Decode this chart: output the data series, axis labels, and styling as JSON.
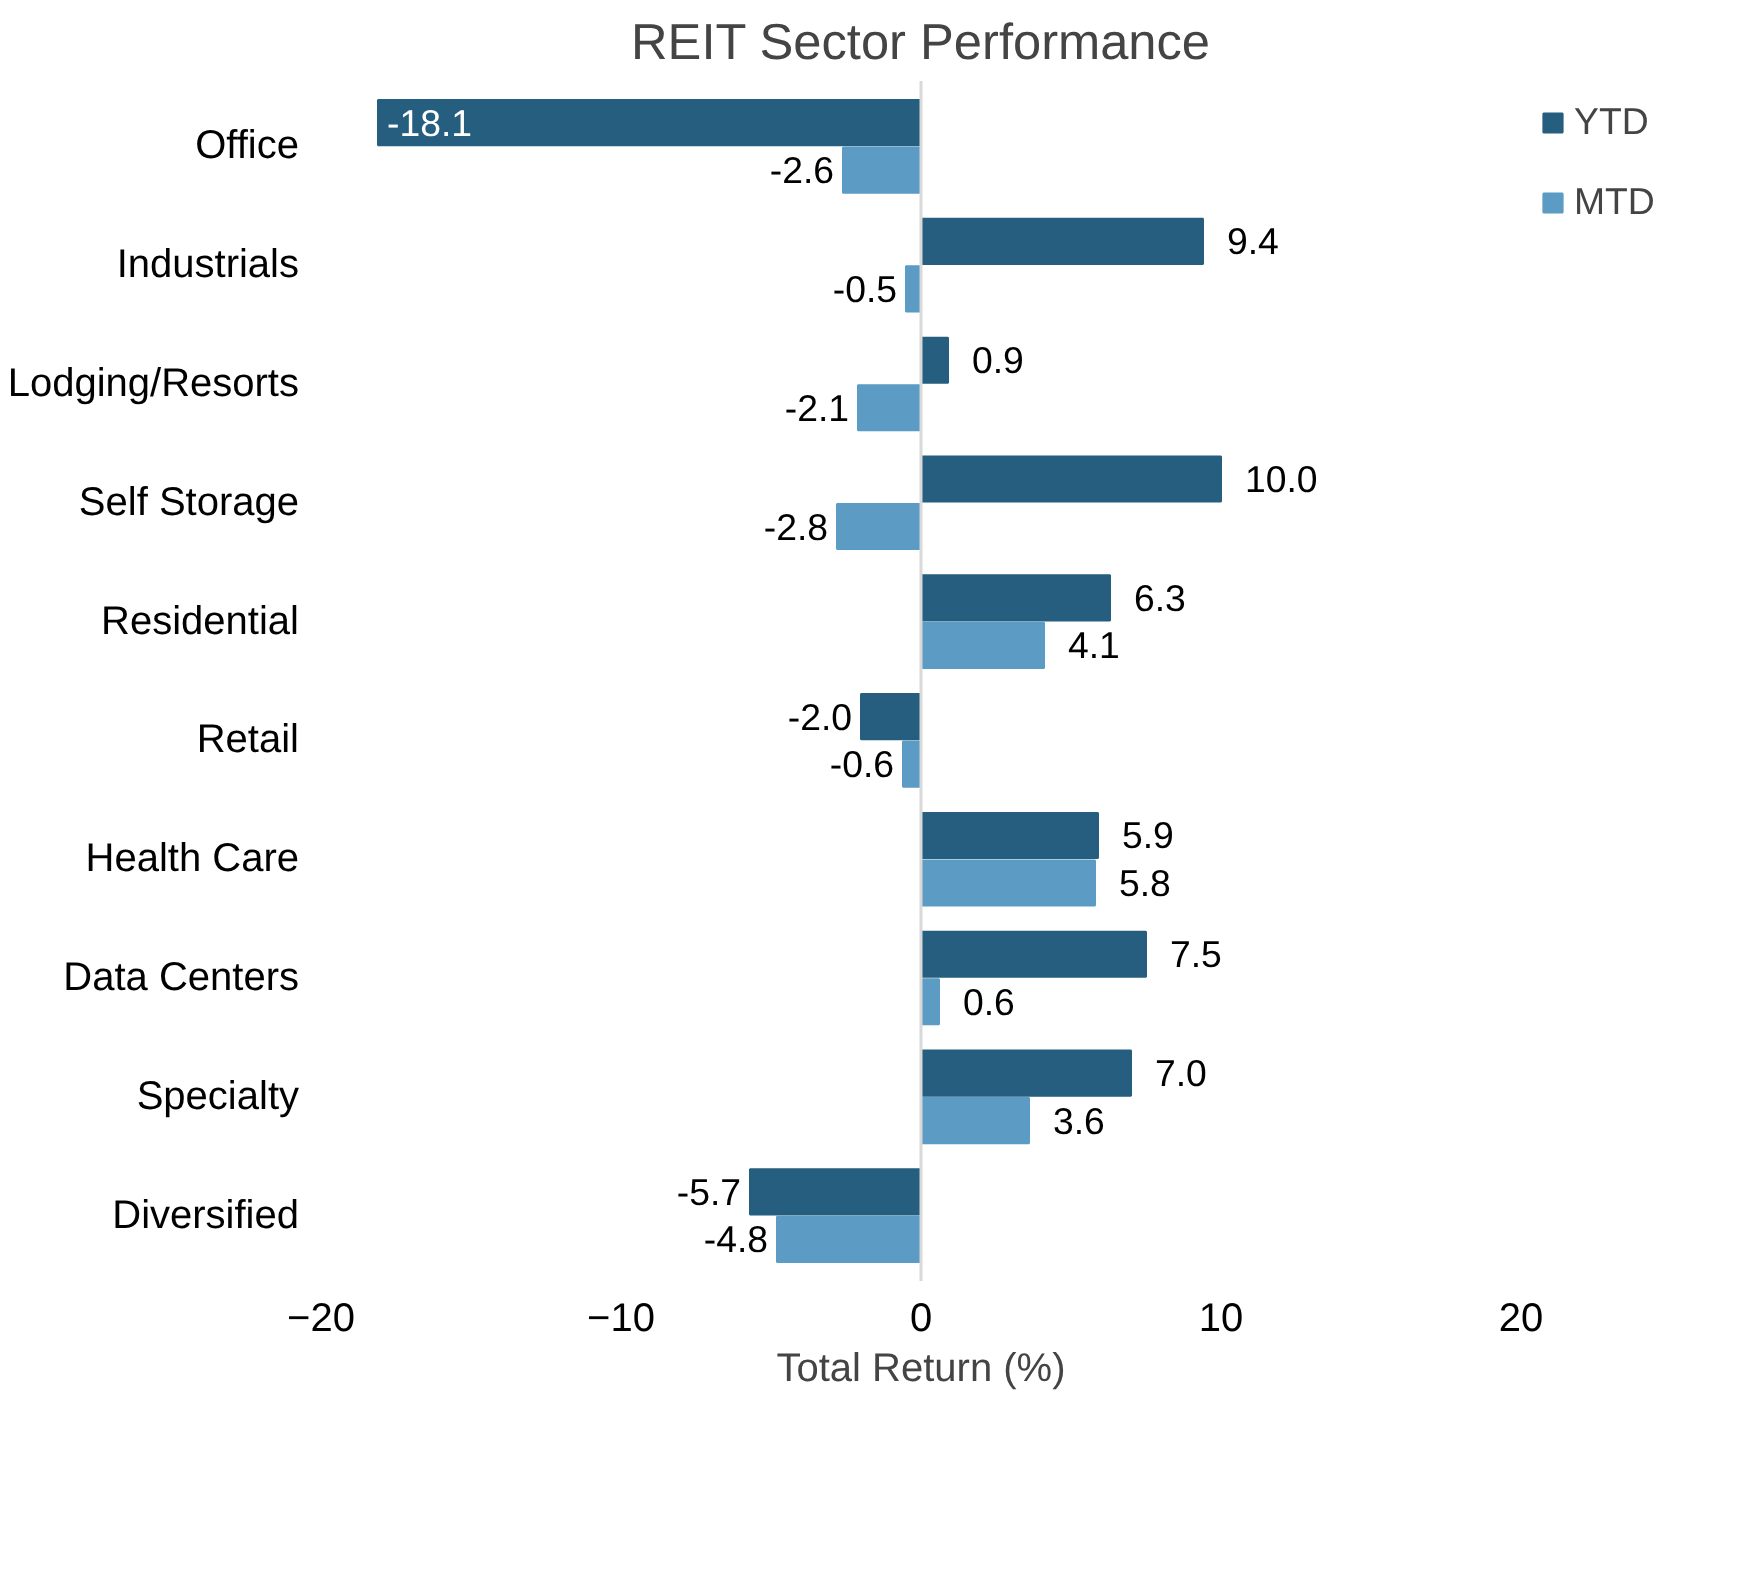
{
  "chart_data": {
    "type": "bar",
    "orientation": "horizontal",
    "title": "REIT Sector Performance",
    "xlabel": "Total Return (%)",
    "categories": [
      "Office",
      "Industrials",
      "Lodging/Resorts",
      "Self Storage",
      "Residential",
      "Retail",
      "Health Care",
      "Data Centers",
      "Specialty",
      "Diversified"
    ],
    "series": [
      {
        "name": "YTD",
        "color": "#255e7e",
        "values": [
          -18.1,
          9.4,
          0.9,
          10.0,
          6.3,
          -2.0,
          5.9,
          7.5,
          7.0,
          -5.7
        ],
        "value_labels": [
          "-18.1",
          "9.4",
          "0.9",
          "10.0",
          "6.3",
          "-2.0",
          "5.9",
          "7.5",
          "7.0",
          "-5.7"
        ]
      },
      {
        "name": "MTD",
        "color": "#5b9bc4",
        "values": [
          -2.6,
          -0.5,
          -2.1,
          -2.8,
          4.1,
          -0.6,
          5.8,
          0.6,
          3.6,
          -4.8
        ],
        "value_labels": [
          "-2.6",
          "-0.5",
          "-2.1",
          "-2.8",
          "4.1",
          "-0.6",
          "5.8",
          "0.6",
          "3.6",
          "-4.8"
        ]
      }
    ],
    "xlim": [
      -20,
      20
    ],
    "xticks": [
      -20,
      -10,
      0,
      10,
      20
    ],
    "ref_lines": [
      {
        "axis": "x",
        "value": 0,
        "color": "#d9d9d9"
      }
    ],
    "grid": false,
    "legend": "top right"
  }
}
